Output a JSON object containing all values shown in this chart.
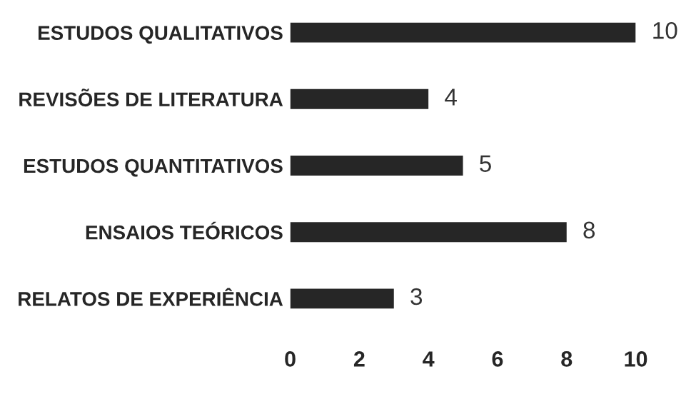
{
  "chart_data": {
    "type": "bar",
    "orientation": "horizontal",
    "categories": [
      "ESTUDOS QUALITATIVOS",
      "REVISÕES DE LITERATURA",
      "ESTUDOS QUANTITATIVOS",
      "ENSAIOS TEÓRICOS",
      "RELATOS DE EXPERIÊNCIA"
    ],
    "values": [
      10,
      4,
      5,
      8,
      3
    ],
    "color": "#262626",
    "data_labels": true,
    "xlim": [
      0,
      10
    ],
    "xticks": [
      0,
      2,
      4,
      6,
      8,
      10
    ],
    "grid": false,
    "legend": false
  }
}
